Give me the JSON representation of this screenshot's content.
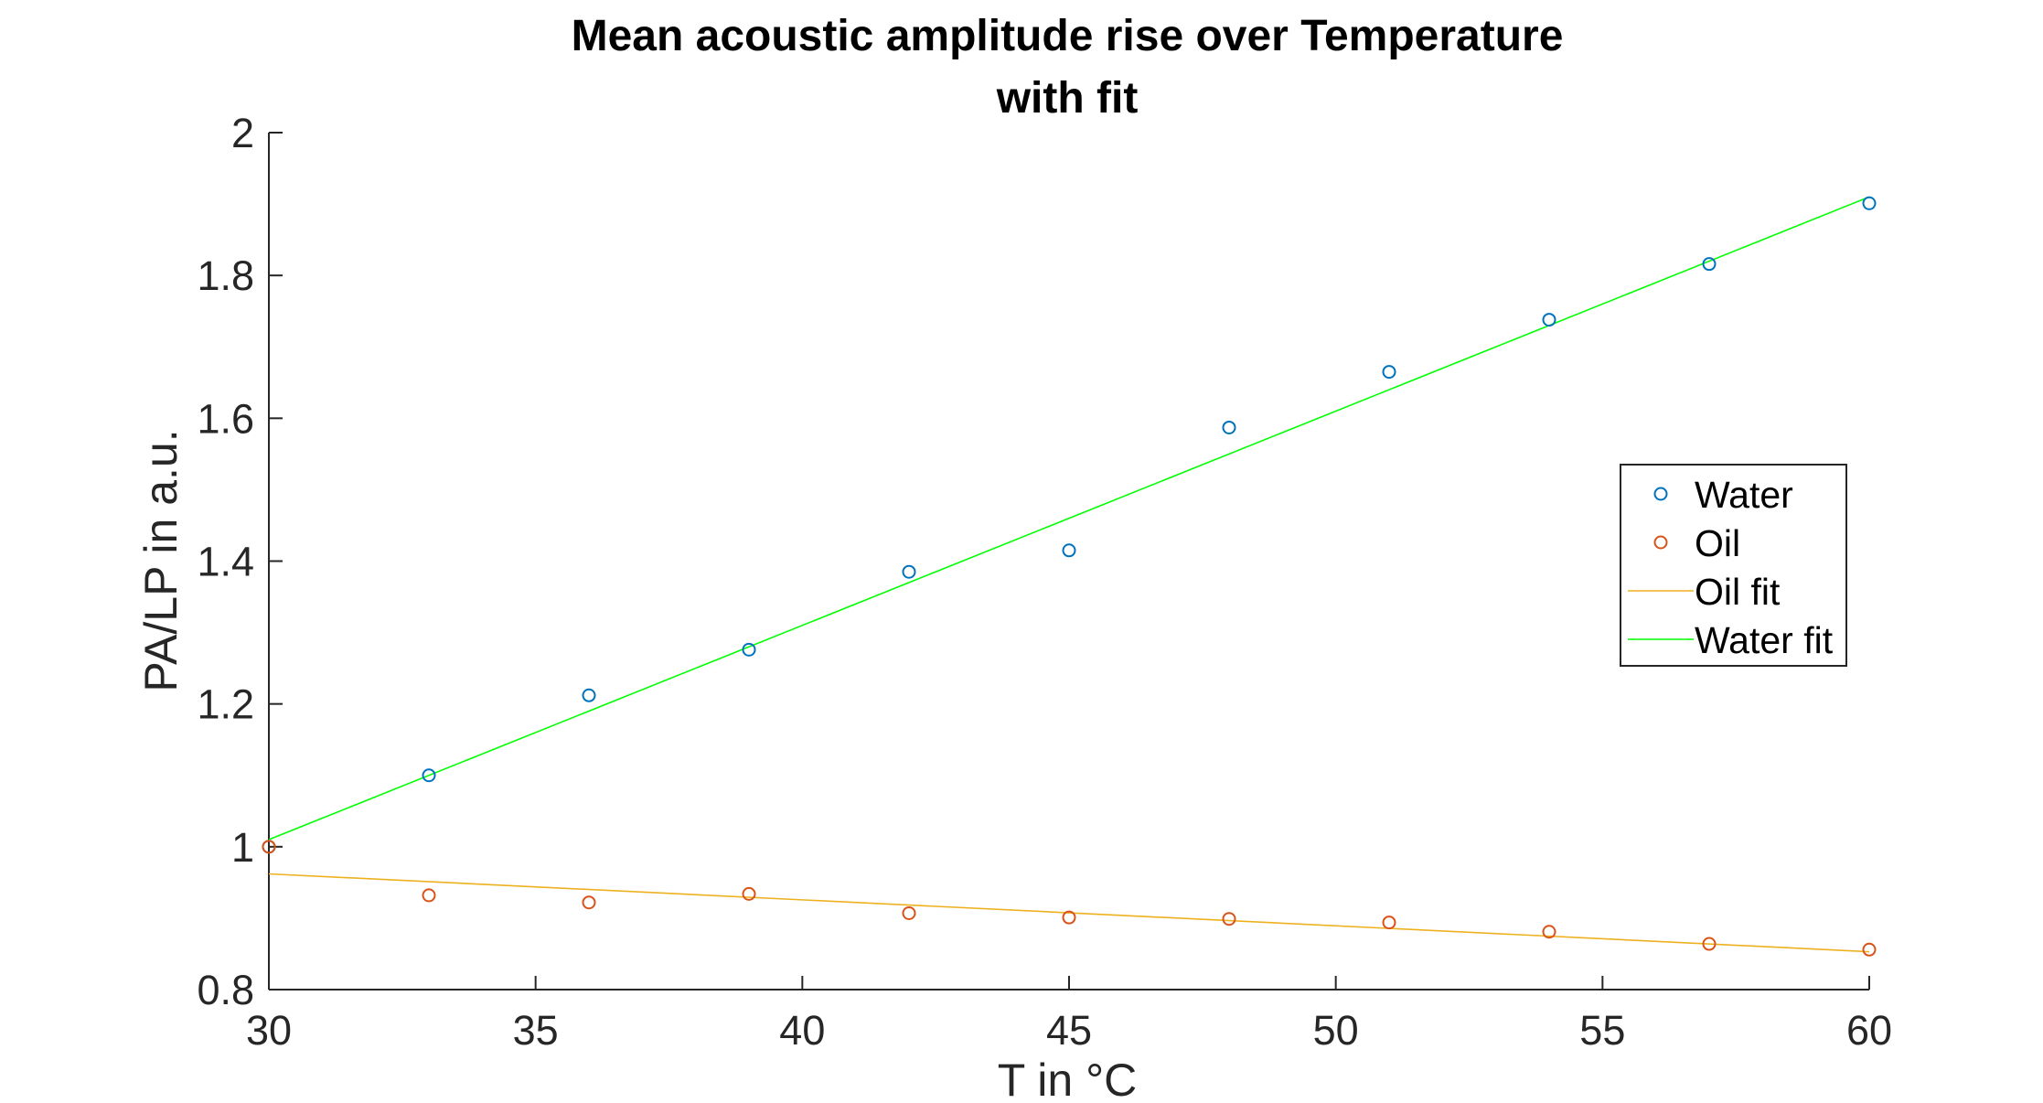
{
  "chart_data": {
    "type": "scatter",
    "title": [
      "Mean acoustic amplitude rise over Temperature",
      "with fit"
    ],
    "xlabel": "T in °C",
    "ylabel": "PA/LP in a.u.",
    "xlim": [
      30,
      60
    ],
    "ylim": [
      0.8,
      2
    ],
    "xticks": [
      "30",
      "35",
      "40",
      "45",
      "50",
      "55",
      "60"
    ],
    "yticks": [
      "0.8",
      "1",
      "1.2",
      "1.4",
      "1.6",
      "1.8",
      "2"
    ],
    "grid": false,
    "legend_position": "right",
    "series": [
      {
        "name": "Water",
        "kind": "markers",
        "color": "#0072BD",
        "x": [
          30,
          33,
          36,
          39,
          42,
          45,
          48,
          51,
          54,
          57,
          60
        ],
        "y": [
          1.0,
          1.1,
          1.212,
          1.276,
          1.385,
          1.415,
          1.587,
          1.665,
          1.738,
          1.816,
          1.901
        ]
      },
      {
        "name": "Oil",
        "kind": "markers",
        "color": "#D95319",
        "x": [
          30,
          33,
          36,
          39,
          42,
          45,
          48,
          51,
          54,
          57,
          60
        ],
        "y": [
          1.0,
          0.932,
          0.922,
          0.934,
          0.907,
          0.901,
          0.899,
          0.894,
          0.881,
          0.864,
          0.856
        ]
      },
      {
        "name": "Oil fit",
        "kind": "line",
        "color": "#EDB120",
        "x": [
          30,
          60
        ],
        "y": [
          0.962,
          0.853
        ]
      },
      {
        "name": "Water fit",
        "kind": "line",
        "color": "#00FF00",
        "x": [
          30,
          60
        ],
        "y": [
          1.01,
          1.91
        ]
      }
    ]
  }
}
